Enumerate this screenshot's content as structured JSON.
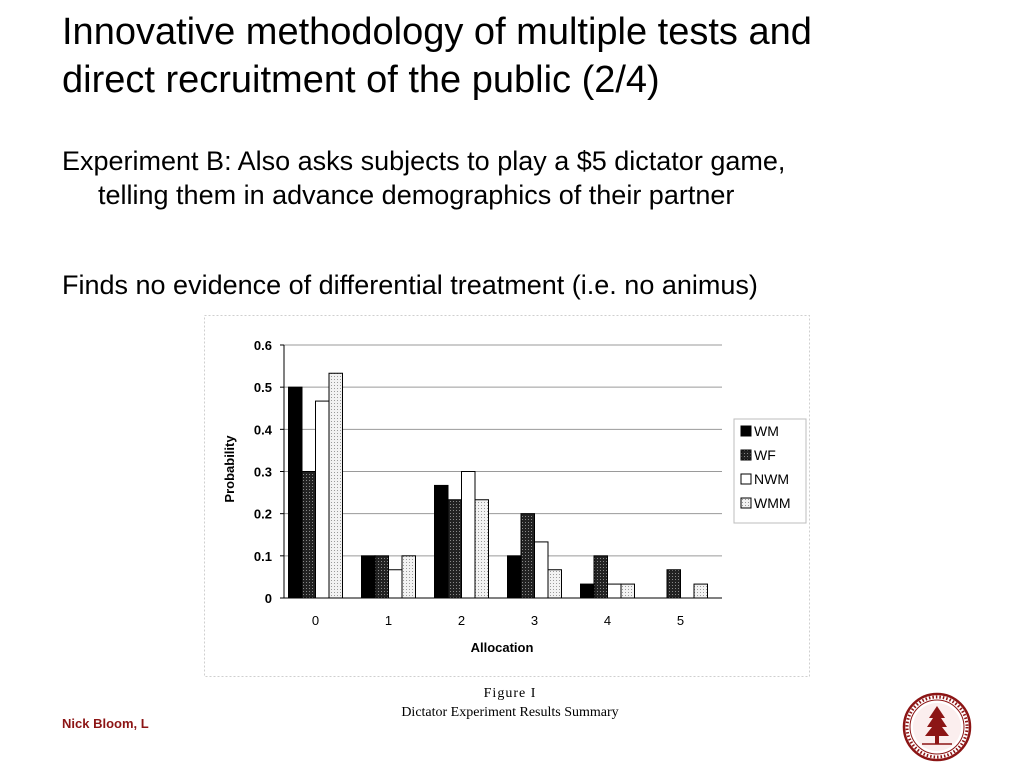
{
  "slide": {
    "title_line1": "Innovative methodology of multiple tests and",
    "title_line2": "direct recruitment of the public (2/4)",
    "bullet1_line1": "Experiment B: Also asks subjects to play a $5 dictator game,",
    "bullet1_line2": "telling them in advance demographics of their partner",
    "bullet2": "Finds no evidence of differential treatment (i.e. no animus)",
    "footer": "Nick Bloom, L"
  },
  "figure": {
    "caption_title": "Figure I",
    "caption_subtitle": "Dictator Experiment Results Summary"
  },
  "seal": {
    "icon": "stanford-seal-icon",
    "color": "#8c1515"
  },
  "chart_data": {
    "type": "bar",
    "xlabel": "Allocation",
    "ylabel": "Probability",
    "ylim": [
      0,
      0.6
    ],
    "yticks": [
      "0",
      "0.1",
      "0.2",
      "0.3",
      "0.4",
      "0.5",
      "0.6"
    ],
    "categories": [
      "0",
      "1",
      "2",
      "3",
      "4",
      "5"
    ],
    "grid": true,
    "legend_position": "right",
    "series": [
      {
        "name": "WM",
        "values": [
          0.5,
          0.1,
          0.267,
          0.1,
          0.033,
          0
        ],
        "fill": "#000000"
      },
      {
        "name": "WF",
        "values": [
          0.3,
          0.1,
          0.233,
          0.2,
          0.1,
          0.067
        ],
        "fill": "#3a3a3a"
      },
      {
        "name": "NWM",
        "values": [
          0.467,
          0.067,
          0.3,
          0.133,
          0.033,
          0
        ],
        "fill": "#ffffff"
      },
      {
        "name": "WMM",
        "values": [
          0.533,
          0.1,
          0.233,
          0.067,
          0.033,
          0.033
        ],
        "fill": "#d9d9d9"
      }
    ]
  }
}
